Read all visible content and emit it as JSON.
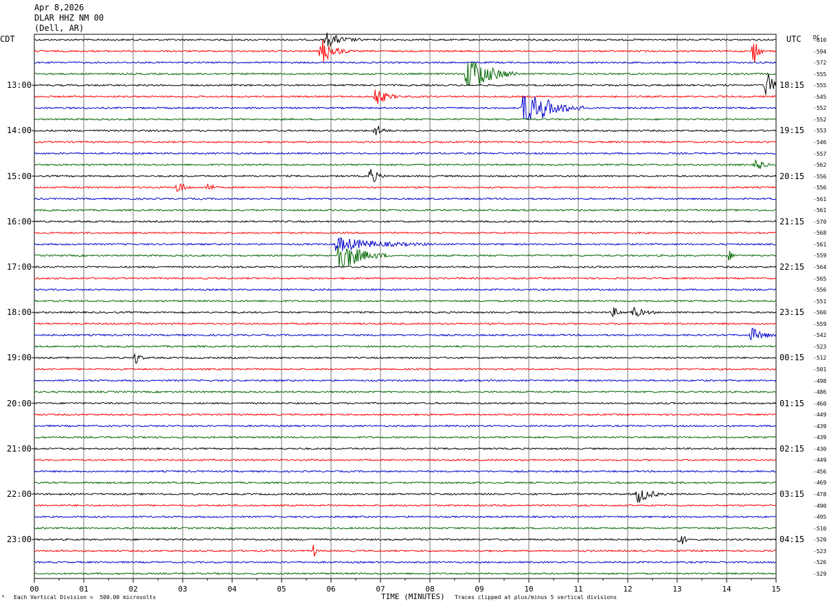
{
  "header": {
    "date": "Apr 8,2026",
    "station": "DLAR HHZ NM 00",
    "location": "(Dell, AR)"
  },
  "left_tz": "CDT",
  "right_tz": "UTC",
  "dc_label": "DC",
  "footer": {
    "scale_note": "Each Vertical Division =  500.00 microvolts",
    "xlabel": "TIME (MINUTES)",
    "clip_note": "Traces clipped at plus/minus 5 vertical divisions",
    "corner_mark": "ᴹ"
  },
  "chart_data": {
    "type": "line",
    "title": "",
    "xlabel": "TIME (MINUTES)",
    "ylabel": "",
    "xlim": [
      0,
      15
    ],
    "x_ticks": [
      "00",
      "01",
      "02",
      "03",
      "04",
      "05",
      "06",
      "07",
      "08",
      "09",
      "10",
      "11",
      "12",
      "13",
      "14",
      "15"
    ],
    "minutes_per_line": 15,
    "trace_colors": [
      "#000000",
      "#ff0000",
      "#0000cc",
      "#006600"
    ],
    "left_time_labels": [
      "13:00",
      "14:00",
      "15:00",
      "16:00",
      "17:00",
      "18:00",
      "19:00",
      "20:00",
      "21:00",
      "22:00",
      "23:00"
    ],
    "right_time_labels": [
      "18:15",
      "19:15",
      "20:15",
      "21:15",
      "22:15",
      "23:15",
      "00:15",
      "01:15",
      "02:15",
      "03:15",
      "04:15"
    ],
    "dc_offsets": [
      "-610",
      "-594",
      "-572",
      "-555",
      "-555",
      "-545",
      "-552",
      "-552",
      "-553",
      "-546",
      "-557",
      "-562",
      "-556",
      "-556",
      "-561",
      "-561",
      "-570",
      "-568",
      "-561",
      "-559",
      "-564",
      "-565",
      "-556",
      "-551",
      "-560",
      "-559",
      "-542",
      "-523",
      "-512",
      "-501",
      "-498",
      "-486",
      "-460",
      "-449",
      "-439",
      "-439",
      "-430",
      "-449",
      "-456",
      "-469",
      "-478",
      "-490",
      "-495",
      "-510",
      "-520",
      "-523",
      "-526",
      "-529"
    ],
    "events": [
      {
        "trace": 0,
        "minute": 5.9,
        "amplitude": 1.5,
        "duration": 0.8
      },
      {
        "trace": 1,
        "minute": 5.8,
        "amplitude": 3,
        "duration": 0.6
      },
      {
        "trace": 1,
        "minute": 14.55,
        "amplitude": 4,
        "duration": 0.2
      },
      {
        "trace": 3,
        "minute": 8.75,
        "amplitude": 5,
        "duration": 1.0
      },
      {
        "trace": 4,
        "minute": 14.8,
        "amplitude": 3,
        "duration": 0.4
      },
      {
        "trace": 5,
        "minute": 6.9,
        "amplitude": 2,
        "duration": 0.5
      },
      {
        "trace": 6,
        "minute": 9.9,
        "amplitude": 5,
        "duration": 1.2
      },
      {
        "trace": 8,
        "minute": 6.9,
        "amplitude": 1.5,
        "duration": 0.3
      },
      {
        "trace": 11,
        "minute": 14.6,
        "amplitude": 1.5,
        "duration": 0.3
      },
      {
        "trace": 12,
        "minute": 6.8,
        "amplitude": 2,
        "duration": 0.3
      },
      {
        "trace": 13,
        "minute": 2.9,
        "amplitude": 1.5,
        "duration": 0.3
      },
      {
        "trace": 13,
        "minute": 3.5,
        "amplitude": 1.5,
        "duration": 0.2
      },
      {
        "trace": 18,
        "minute": 6.1,
        "amplitude": 1.5,
        "duration": 2.0
      },
      {
        "trace": 19,
        "minute": 6.15,
        "amplitude": 4,
        "duration": 1.0
      },
      {
        "trace": 19,
        "minute": 14.05,
        "amplitude": 1,
        "duration": 0.2
      },
      {
        "trace": 24,
        "minute": 11.7,
        "amplitude": 1,
        "duration": 0.3
      },
      {
        "trace": 24,
        "minute": 12.1,
        "amplitude": 1.2,
        "duration": 0.5
      },
      {
        "trace": 26,
        "minute": 14.5,
        "amplitude": 1.5,
        "duration": 0.6
      },
      {
        "trace": 28,
        "minute": 2.05,
        "amplitude": 1.5,
        "duration": 0.2
      },
      {
        "trace": 40,
        "minute": 12.2,
        "amplitude": 2,
        "duration": 0.6
      },
      {
        "trace": 44,
        "minute": 13.05,
        "amplitude": 2,
        "duration": 0.2
      },
      {
        "trace": 45,
        "minute": 5.65,
        "amplitude": 1.5,
        "duration": 0.1
      }
    ]
  }
}
